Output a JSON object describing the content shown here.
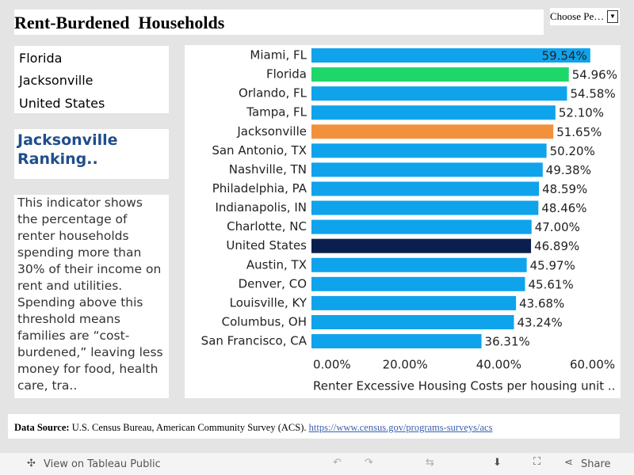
{
  "header": {
    "title": "Rent-Burdened  Households",
    "dropdown": "Choose Pe…"
  },
  "legend": [
    "Florida",
    "Jacksonville",
    "United States"
  ],
  "ranking_title": "Jacksonville Ranking..",
  "description": "This indicator shows the percentage of renter households spending more than 30% of their income on rent and utilities. Spending above this threshold means families are “cost-burdened,” leaving less money for food, health care, tra..",
  "source": {
    "label": "Data Source:",
    "text": "U.S. Census Bureau, American Community Survey (ACS).",
    "link": "https://www.census.gov/programs-surveys/acs"
  },
  "toolbar": {
    "view": "View on Tableau Public",
    "share": "Share"
  },
  "chart_data": {
    "type": "bar",
    "orientation": "horizontal",
    "x_label": "Renter Excessive Housing Costs per housing unit ..",
    "categories": [
      "Miami, FL",
      "Florida",
      "Orlando, FL",
      "Tampa, FL",
      "Jacksonville",
      "San Antonio, TX",
      "Nashville, TN",
      "Philadelphia, PA",
      "Indianapolis, IN",
      "Charlotte, NC",
      "United States",
      "Austin, TX",
      "Denver, CO",
      "Louisville, KY",
      "Columbus, OH",
      "San Francisco, CA"
    ],
    "values": [
      59.54,
      54.96,
      54.58,
      52.1,
      51.65,
      50.2,
      49.38,
      48.59,
      48.46,
      47.0,
      46.89,
      45.97,
      45.61,
      43.68,
      43.24,
      36.31
    ],
    "value_labels": [
      "59.54%",
      "54.96%",
      "54.58%",
      "52.10%",
      "51.65%",
      "50.20%",
      "49.38%",
      "48.59%",
      "48.46%",
      "47.00%",
      "46.89%",
      "45.97%",
      "45.61%",
      "43.68%",
      "43.24%",
      "36.31%"
    ],
    "colors": [
      "#0fa3ec",
      "#1fd66b",
      "#0fa3ec",
      "#0fa3ec",
      "#f2913b",
      "#0fa3ec",
      "#0fa3ec",
      "#0fa3ec",
      "#0fa3ec",
      "#0fa3ec",
      "#0b1f4e",
      "#0fa3ec",
      "#0fa3ec",
      "#0fa3ec",
      "#0fa3ec",
      "#0fa3ec"
    ],
    "xlim": [
      0,
      66
    ],
    "xticks": [
      {
        "value": 0,
        "label": "0.00%"
      },
      {
        "value": 20,
        "label": "20.00%"
      },
      {
        "value": 40,
        "label": "40.00%"
      },
      {
        "value": 60,
        "label": "60.00%"
      }
    ],
    "grid": false
  }
}
